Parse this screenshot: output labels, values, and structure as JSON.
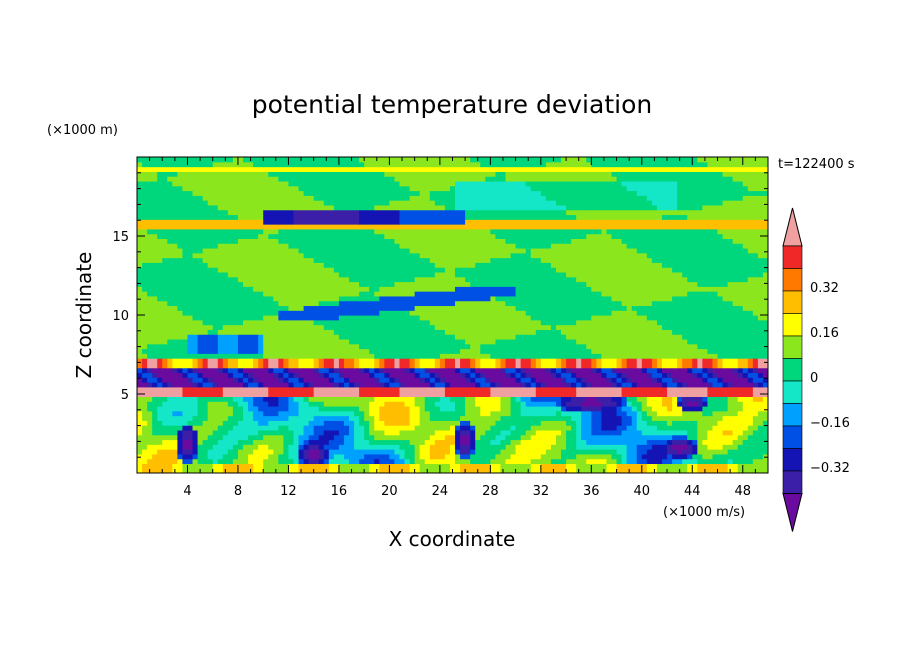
{
  "chart_data": {
    "type": "heatmap",
    "title": "potential temperature deviation",
    "xlabel": "X coordinate",
    "ylabel": "Z coordinate",
    "x_unit": "(×1000 m/s)",
    "y_unit": "(×1000 m)",
    "time_label": "t=122400 s",
    "xlim": [
      0,
      50
    ],
    "ylim": [
      0,
      20
    ],
    "x_ticks": [
      "4",
      "8",
      "12",
      "16",
      "20",
      "24",
      "28",
      "32",
      "36",
      "40",
      "44",
      "48"
    ],
    "y_ticks": [
      "5",
      "10",
      "15"
    ],
    "colorbar": {
      "levels": [
        -0.48,
        -0.4,
        -0.32,
        -0.24,
        -0.16,
        -0.08,
        0,
        0.08,
        0.16,
        0.24,
        0.32,
        0.4,
        0.48
      ],
      "labels": [
        "0.32",
        "0.16",
        "0",
        "−0.16",
        "−0.32"
      ],
      "colors": [
        "#6a0a9e",
        "#3c1fa8",
        "#1414b4",
        "#0050e6",
        "#00a0ff",
        "#14e6c8",
        "#00d77c",
        "#8ce61e",
        "#ffff00",
        "#ffbe00",
        "#ff7800",
        "#f02828",
        "#f0a0a0"
      ],
      "extend": "both"
    },
    "features": [
      {
        "description": "background near zero",
        "value": 0.04
      },
      {
        "description": "thin warm band near z=15.8",
        "value": 0.2
      },
      {
        "description": "strong negative/positive layering near z=5-7.5",
        "value": -0.4
      },
      {
        "description": "convective cells below z=5",
        "value": -0.35
      }
    ]
  }
}
